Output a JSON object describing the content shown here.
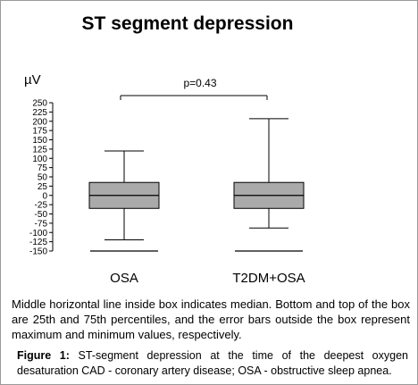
{
  "chart_data": {
    "type": "box",
    "title": "ST segment depression",
    "ylabel": "µV",
    "ylim": [
      -150,
      250
    ],
    "yticks": [
      250,
      225,
      200,
      175,
      150,
      125,
      100,
      75,
      50,
      25,
      0,
      -25,
      -50,
      -75,
      -100,
      -125,
      -150
    ],
    "yticklabels": [
      "250",
      "225",
      "200",
      "175",
      "150",
      "125",
      "100",
      "75",
      "50",
      "25",
      "0",
      "-25",
      "-50",
      "-75",
      "-100",
      "-125",
      "-150"
    ],
    "categories": [
      "OSA",
      "T2DM+OSA"
    ],
    "boxes": [
      {
        "min": -120,
        "q1": -35,
        "median": 0,
        "q3": 35,
        "max": 120
      },
      {
        "min": -88,
        "q1": -35,
        "median": 0,
        "q3": 35,
        "max": 207
      }
    ],
    "box_fill": "#aaaaaa",
    "annotation": "p=0.43",
    "grid": false
  },
  "figure": {
    "note": "Middle horizontal line inside box indicates median. Bottom and top of the box are 25th and 75th percentiles, and the error bars outside the box represent maximum and minimum values, respectively.",
    "caption_label": "Figure 1:",
    "caption_text": " ST-segment depression at the time of the deepest oxygen desaturation  CAD - coronary artery disease; OSA - obstructive sleep apnea."
  }
}
